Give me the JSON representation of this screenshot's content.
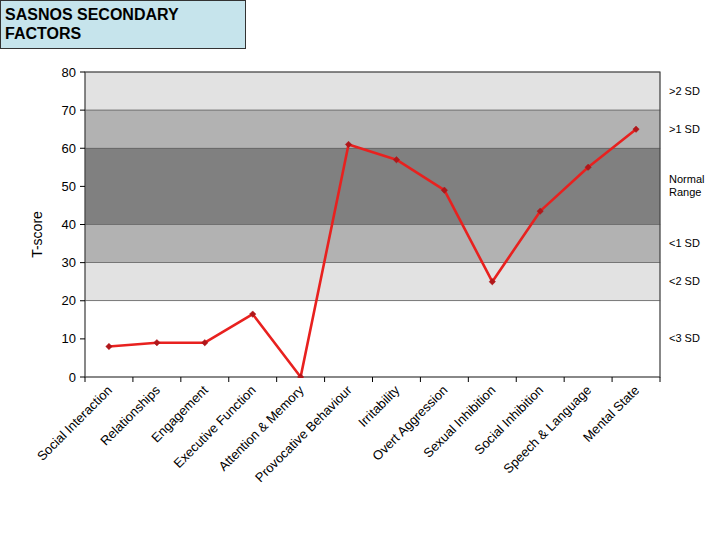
{
  "chart_data": {
    "type": "line",
    "title": "SASNOS SECONDARY FACTORS",
    "y_label": "T-score",
    "categories": [
      "Social Interaction",
      "Relationships",
      "Engagement",
      "Executive Function",
      "Attention & Memory",
      "Provocative Behaviour",
      "Irritability",
      "Overt Aggression",
      "Sexual Inhibition",
      "Social Inhibition",
      "Speech & Language",
      "Mental State"
    ],
    "values": [
      8,
      9,
      9,
      16.5,
      0,
      61,
      57,
      49,
      25,
      43.5,
      55,
      65
    ],
    "color": "#e8211f",
    "marker": "diamond",
    "ylim": [
      0,
      80
    ],
    "yticks": [
      0,
      10,
      20,
      30,
      40,
      50,
      60,
      70,
      80
    ],
    "grid": false,
    "bands": [
      {
        "from": 70,
        "to": 80,
        "label": ">2 SD",
        "color": "#e2e2e2"
      },
      {
        "from": 60,
        "to": 70,
        "label": ">1 SD",
        "color": "#b2b2b2"
      },
      {
        "from": 40,
        "to": 60,
        "label": "Normal Range",
        "color": "#808080"
      },
      {
        "from": 30,
        "to": 40,
        "label": "<1 SD",
        "color": "#b2b2b2"
      },
      {
        "from": 20,
        "to": 30,
        "label": "<2 SD",
        "color": "#e2e2e2"
      },
      {
        "from": 0,
        "to": 20,
        "label": "<3 SD",
        "color": "#ffffff"
      }
    ]
  }
}
